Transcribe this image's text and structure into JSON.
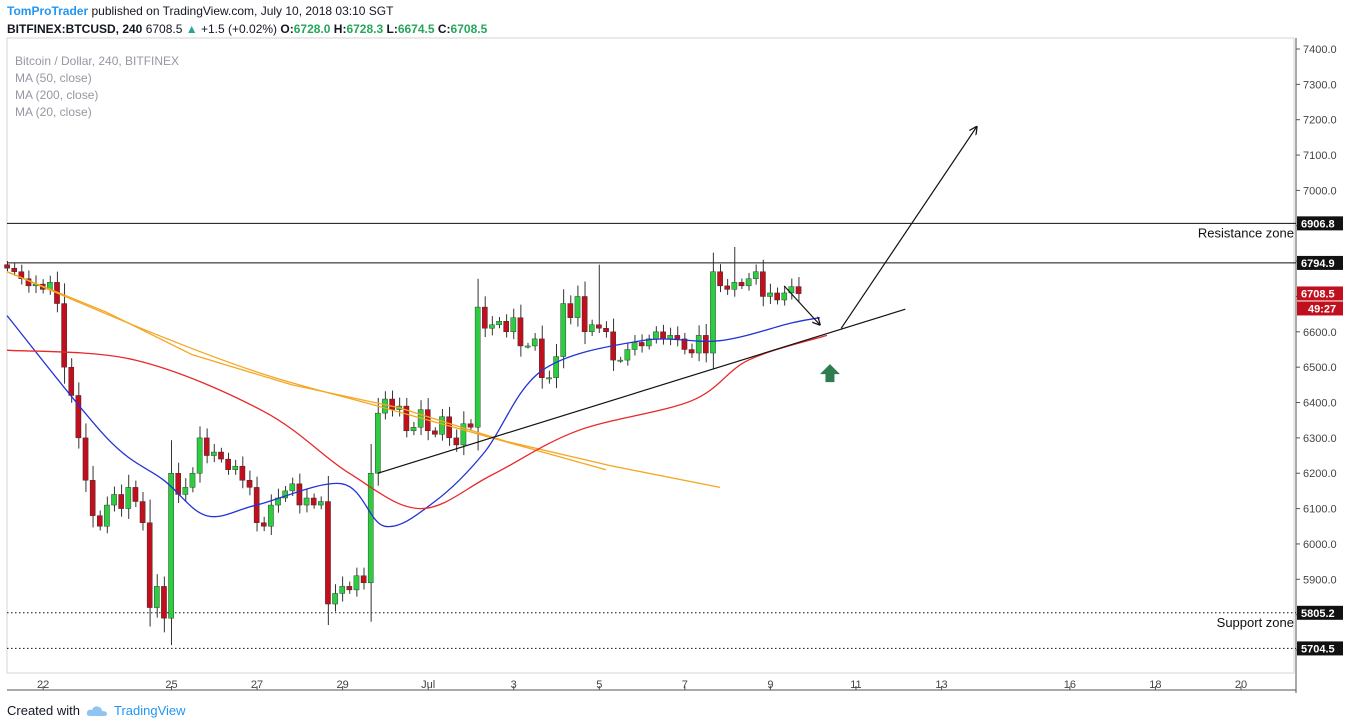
{
  "header": {
    "author": "TomProTrader",
    "published": " published on TradingView.com, July 10, 2018 03:10 SGT",
    "symbol": "BITFINEX:BTCUSD, 240",
    "last": "6708.5",
    "change": "+1.5 (+0.02%)",
    "o_label": "O:",
    "o": "6728.0",
    "h_label": "H:",
    "h": "6728.3",
    "l_label": "L:",
    "l": "6674.5",
    "c_label": "C:",
    "c": "6708.5"
  },
  "legend": [
    "Bitcoin / Dollar, 240, BITFINEX",
    "MA (50, close)",
    "MA (200, close)",
    "MA (20, close)"
  ],
  "footer": {
    "created": "Created with",
    "brand": "TradingView"
  },
  "colors": {
    "up": "#2ecc40",
    "down": "#c0101e",
    "ma20": "#2432d8",
    "ma50": "#e8282a",
    "ma200": "#f5a623",
    "arrow": "#2e7d4f"
  },
  "chart_data": {
    "type": "candlestick",
    "ylim": [
      5660,
      7420
    ],
    "y_ticks": [
      7400,
      7300,
      7200,
      7100,
      7000,
      6900,
      6800,
      6700,
      6600,
      6500,
      6400,
      6300,
      6200,
      6100,
      6000,
      5900,
      5800,
      5700
    ],
    "y_tick_labels": [
      "7400.0",
      "7300.0",
      "7200.0",
      "7100.0",
      "7000.0",
      "6900.0",
      "6800.0",
      "6700.0",
      "6600.0",
      "6500.0",
      "6400.0",
      "6300.0",
      "6200.0",
      "6100.0",
      "6000.0",
      "5900.0",
      "5800.0",
      "5700.0"
    ],
    "x_ticks": [
      {
        "label": "22",
        "bar": 5
      },
      {
        "label": "25",
        "bar": 23
      },
      {
        "label": "27",
        "bar": 35
      },
      {
        "label": "29",
        "bar": 47
      },
      {
        "label": "Jul",
        "bar": 59
      },
      {
        "label": "3",
        "bar": 71
      },
      {
        "label": "5",
        "bar": 83
      },
      {
        "label": "7",
        "bar": 95
      },
      {
        "label": "9",
        "bar": 107
      },
      {
        "label": "11",
        "bar": 119
      },
      {
        "label": "13",
        "bar": 131
      },
      {
        "label": "16",
        "bar": 149
      },
      {
        "label": "18",
        "bar": 161
      },
      {
        "label": "20",
        "bar": 173
      }
    ],
    "candles_close": [
      6780,
      6770,
      6750,
      6730,
      6735,
      6720,
      6740,
      6680,
      6500,
      6420,
      6300,
      6180,
      6080,
      6050,
      6110,
      6140,
      6100,
      6160,
      6120,
      6060,
      5820,
      5880,
      5790,
      6200,
      6140,
      6160,
      6200,
      6300,
      6250,
      6260,
      6240,
      6210,
      6220,
      6180,
      6160,
      6060,
      6050,
      6110,
      6130,
      6150,
      6170,
      6110,
      6130,
      6110,
      6120,
      5830,
      5860,
      5880,
      5870,
      5910,
      5890,
      6200,
      6370,
      6410,
      6380,
      6390,
      6320,
      6330,
      6380,
      6320,
      6310,
      6360,
      6300,
      6280,
      6340,
      6330,
      6670,
      6610,
      6620,
      6630,
      6600,
      6640,
      6560,
      6560,
      6580,
      6470,
      6470,
      6530,
      6680,
      6640,
      6700,
      6600,
      6620,
      6610,
      6600,
      6520,
      6520,
      6550,
      6570,
      6560,
      6580,
      6600,
      6580,
      6590,
      6580,
      6550,
      6540,
      6590,
      6540,
      6770,
      6730,
      6720,
      6740,
      6730,
      6750,
      6770,
      6700,
      6710,
      6690,
      6710,
      6728,
      6708
    ],
    "wick_extremes": [
      {
        "bar": 102,
        "high": 6840
      },
      {
        "bar": 83,
        "high": 6790
      },
      {
        "bar": 22,
        "low": 5750
      },
      {
        "bar": 51,
        "low": 5780
      }
    ],
    "ma20_points": [
      [
        0,
        6646
      ],
      [
        14,
        6300
      ],
      [
        22,
        6180
      ],
      [
        28,
        6080
      ],
      [
        35,
        6110
      ],
      [
        47,
        6170
      ],
      [
        53,
        6050
      ],
      [
        60,
        6120
      ],
      [
        67,
        6260
      ],
      [
        75,
        6490
      ],
      [
        89,
        6575
      ],
      [
        100,
        6575
      ],
      [
        110,
        6625
      ],
      [
        114,
        6640
      ]
    ],
    "ma50_points": [
      [
        0,
        6548
      ],
      [
        18,
        6520
      ],
      [
        36,
        6375
      ],
      [
        48,
        6200
      ],
      [
        58,
        6100
      ],
      [
        68,
        6195
      ],
      [
        80,
        6320
      ],
      [
        96,
        6405
      ],
      [
        104,
        6520
      ],
      [
        115,
        6590
      ]
    ],
    "ma200_points": [
      [
        0,
        6770
      ],
      [
        20,
        6600
      ],
      [
        36,
        6480
      ],
      [
        52,
        6390
      ],
      [
        68,
        6300
      ],
      [
        84,
        6210
      ],
      [
        100,
        6120
      ],
      [
        108,
        6660
      ],
      [
        115,
        6584
      ]
    ],
    "horizontal_levels": [
      {
        "value": 6906.8,
        "label": "6906.8",
        "style": "solid",
        "zone": "Resistance zone"
      },
      {
        "value": 6794.9,
        "label": "6794.9",
        "style": "solid",
        "zone": ""
      },
      {
        "value": 5805.2,
        "label": "5805.2",
        "style": "dotted",
        "zone": "Support zone"
      },
      {
        "value": 5704.5,
        "label": "5704.5",
        "style": "dotted",
        "zone": ""
      }
    ],
    "trendline": {
      "from": [
        52,
        6200
      ],
      "to": [
        126,
        6664
      ]
    },
    "annotations": [
      {
        "type": "arrow",
        "from": [
          117,
          6610
        ],
        "to": [
          136,
          7180
        ]
      },
      {
        "type": "arrow",
        "from": [
          109,
          6730
        ],
        "to": [
          114,
          6620
        ]
      },
      {
        "type": "up-arrow-marker",
        "at": [
          115,
          6520
        ]
      }
    ],
    "last_price": {
      "value": "6708.5",
      "countdown": "49:27"
    }
  }
}
